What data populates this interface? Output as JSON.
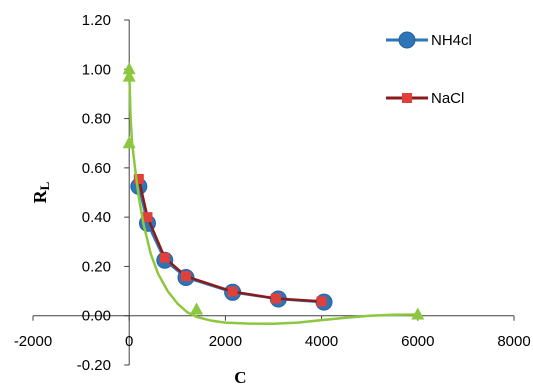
{
  "chart_data": {
    "type": "scatter",
    "xlabel": "C",
    "ylabel_main": "R",
    "ylabel_sub": "L",
    "xlim": [
      -2000,
      8000
    ],
    "ylim": [
      -0.2,
      1.2
    ],
    "x_ticks": [
      "-2000",
      "0",
      "2000",
      "4000",
      "6000",
      "8000"
    ],
    "y_ticks": [
      "-0.20",
      "0.00",
      "0.20",
      "0.40",
      "0.60",
      "0.80",
      "1.00",
      "1.20"
    ],
    "legend_position": "right",
    "grid": false,
    "series": [
      {
        "name": "NH4cl",
        "color": "#2E75B6",
        "marker": "circle",
        "line": true,
        "x": [
          200,
          380,
          740,
          1180,
          2150,
          3100,
          4050
        ],
        "y": [
          0.525,
          0.375,
          0.225,
          0.155,
          0.095,
          0.068,
          0.055
        ]
      },
      {
        "name": "NaCl",
        "color": "#E0403C",
        "line_color": "#8B1A1A",
        "marker": "square",
        "line": true,
        "x": [
          200,
          380,
          740,
          1180,
          2150,
          3050,
          4000
        ],
        "y": [
          0.555,
          0.4,
          0.235,
          0.16,
          0.098,
          0.07,
          0.058
        ]
      },
      {
        "color": "#8DC63F",
        "marker": "triangle",
        "line": true,
        "smooth": true,
        "x": [
          0,
          0,
          0,
          1400,
          6000
        ],
        "y": [
          1.0,
          0.97,
          0.7,
          0.025,
          0.005
        ],
        "curve_x": [
          0,
          5,
          10,
          30,
          60,
          120,
          200,
          300,
          450,
          600,
          800,
          1000,
          1200,
          1400,
          1700,
          2000,
          2500,
          3000,
          3500,
          4000,
          4500,
          5000,
          5500,
          6000
        ],
        "curve_y": [
          1.0,
          0.97,
          0.93,
          0.8,
          0.7,
          0.6,
          0.48,
          0.37,
          0.25,
          0.17,
          0.1,
          0.05,
          0.015,
          -0.005,
          -0.02,
          -0.028,
          -0.032,
          -0.033,
          -0.028,
          -0.018,
          -0.008,
          0.0,
          0.004,
          0.005
        ]
      }
    ]
  }
}
